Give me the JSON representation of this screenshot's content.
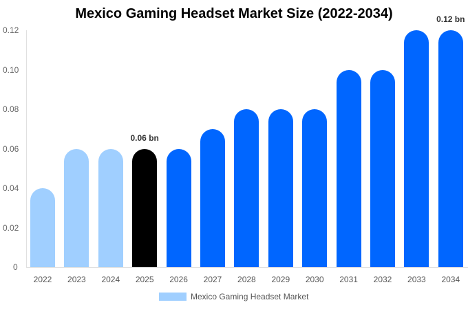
{
  "chart_data": {
    "type": "bar",
    "title": "Mexico Gaming Headset Market Size (2022-2034)",
    "xlabel": "",
    "ylabel": "",
    "ylim": [
      0,
      0.12
    ],
    "yticks": [
      "0",
      "0.02",
      "0.04",
      "0.06",
      "0.08",
      "0.10",
      "0.12"
    ],
    "categories": [
      "2022",
      "2023",
      "2024",
      "2025",
      "2026",
      "2027",
      "2028",
      "2029",
      "2030",
      "2031",
      "2032",
      "2033",
      "2034"
    ],
    "series": [
      {
        "name": "Mexico Gaming Headset Market",
        "values": [
          0.04,
          0.06,
          0.06,
          0.06,
          0.06,
          0.07,
          0.08,
          0.08,
          0.08,
          0.1,
          0.1,
          0.12,
          0.12
        ]
      }
    ],
    "bar_colors": [
      "#a0cfff",
      "#a0cfff",
      "#a0cfff",
      "#000000",
      "#0066ff",
      "#0066ff",
      "#0066ff",
      "#0066ff",
      "#0066ff",
      "#0066ff",
      "#0066ff",
      "#0066ff",
      "#0066ff"
    ],
    "annotations": [
      {
        "category": "2025",
        "label": "0.06 bn"
      },
      {
        "category": "2034",
        "label": "0.12 bn"
      }
    ],
    "legend": {
      "label": "Mexico Gaming Headset Market",
      "color": "#a0cfff",
      "position": "bottom"
    },
    "grid": false
  }
}
